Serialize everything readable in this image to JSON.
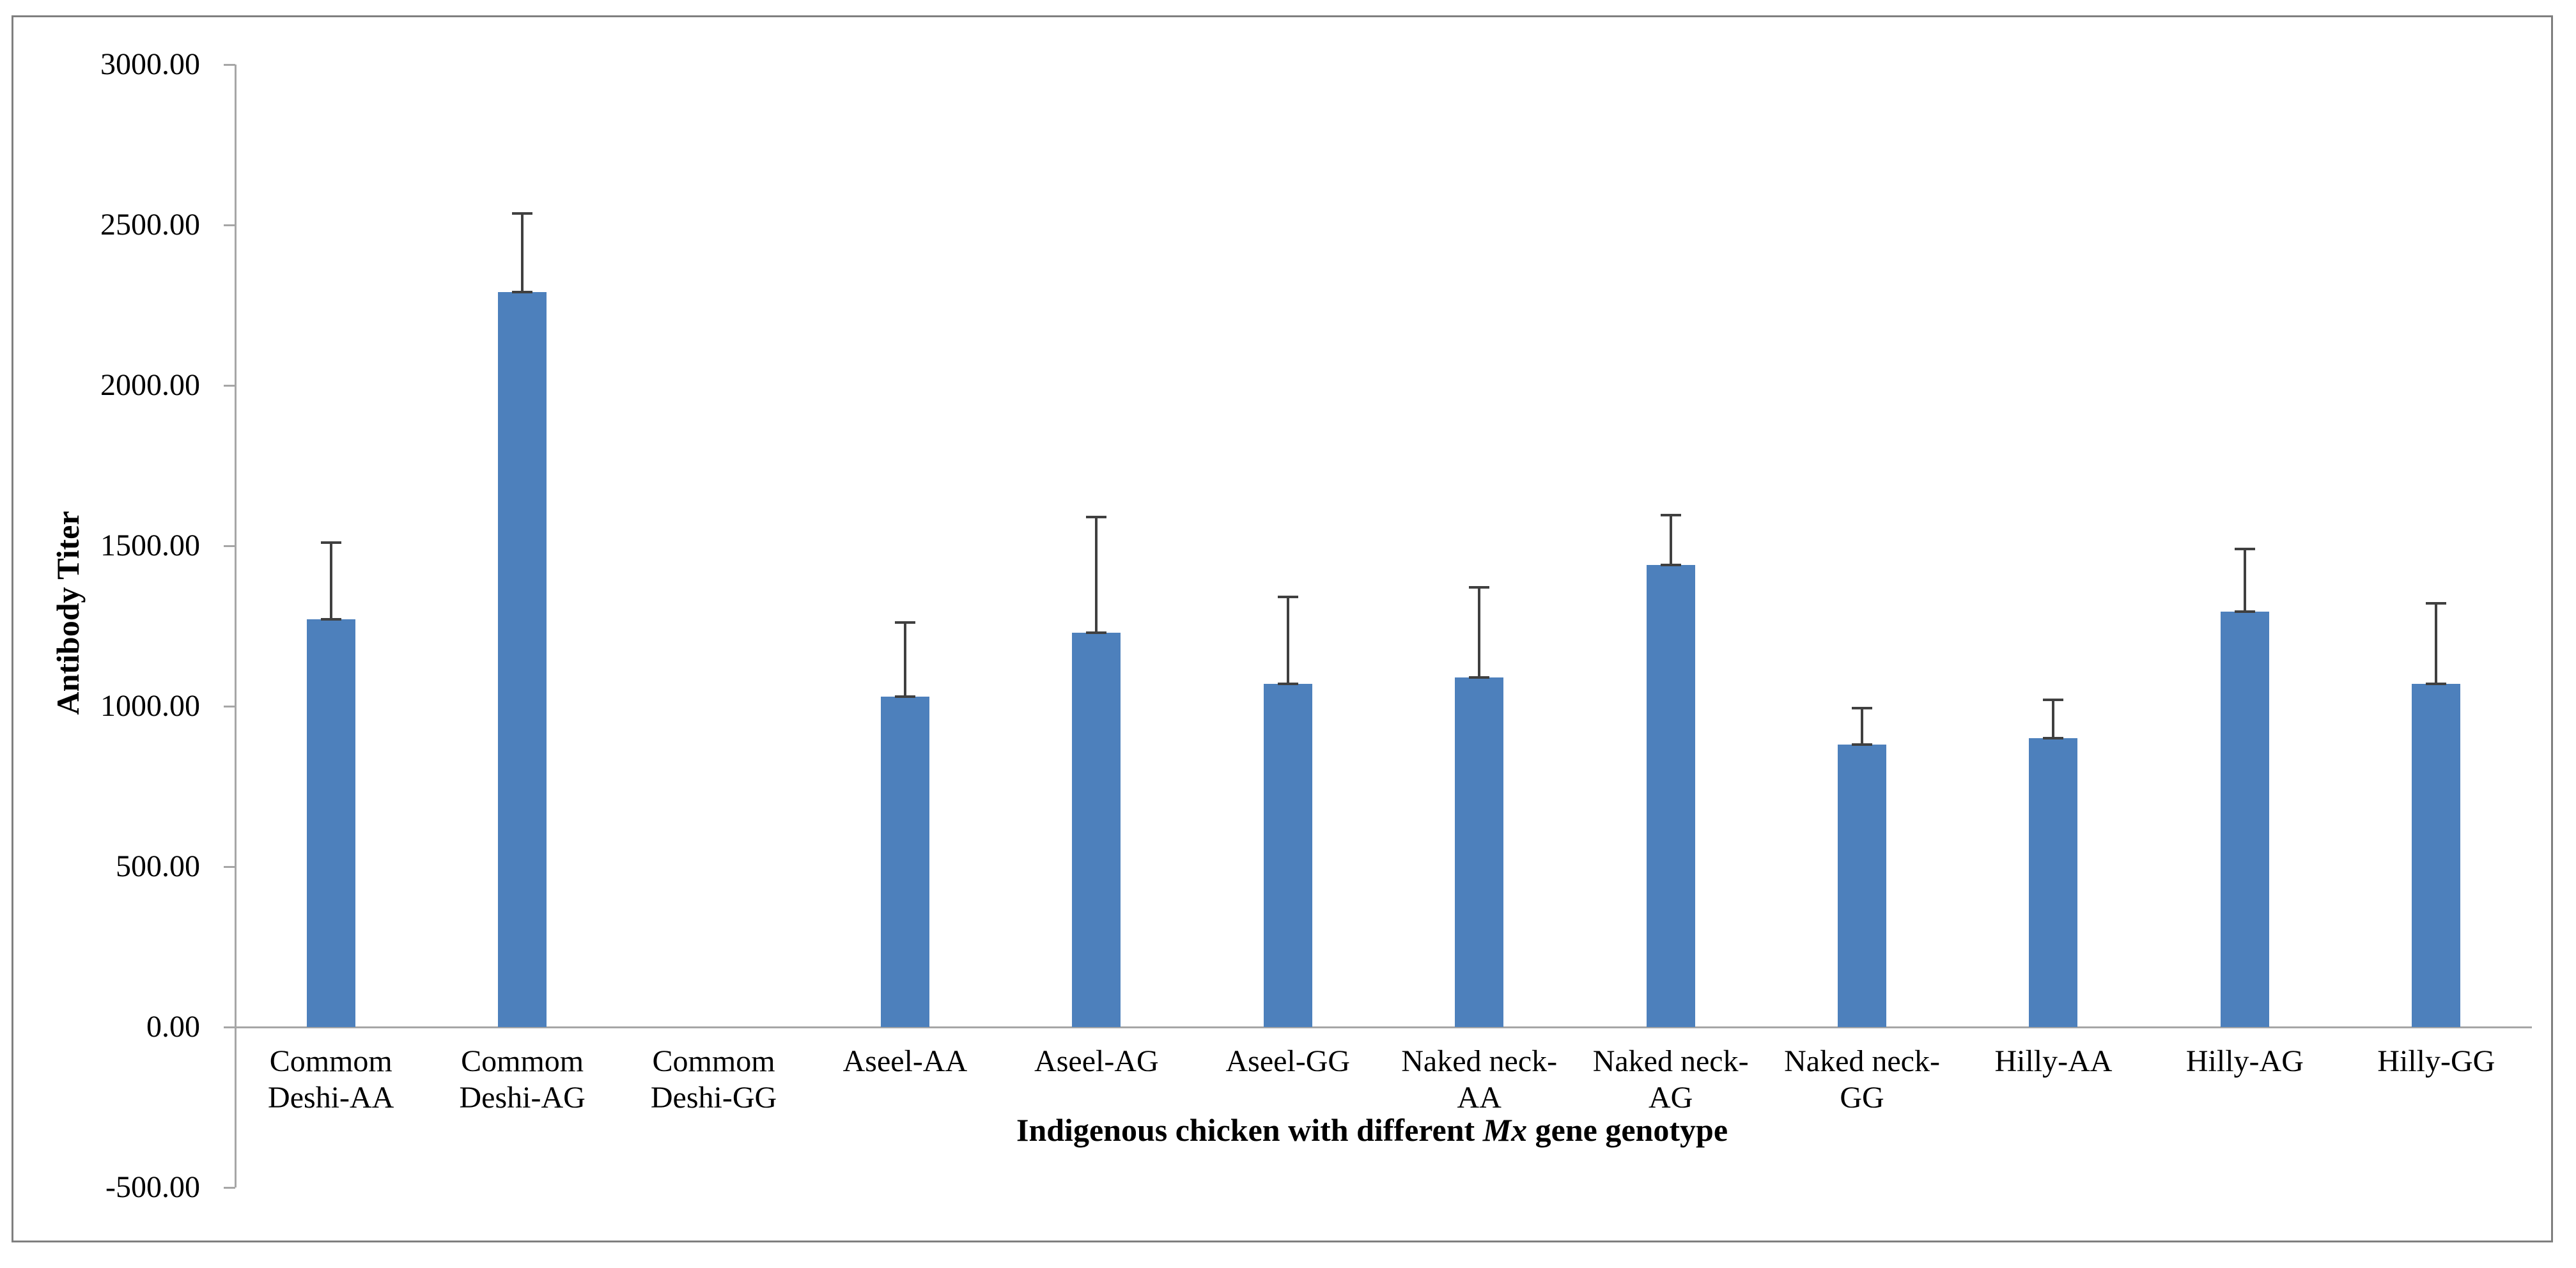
{
  "chart_data": {
    "type": "bar",
    "title": "",
    "xlabel": "Indigenous chicken with different Mx gene genotype",
    "xlabel_parts": {
      "prefix": "Indigenous chicken with different ",
      "italic": "Mx",
      "suffix": " gene genotype"
    },
    "ylabel": "Antibody Titer",
    "categories": [
      "Commom Deshi-AA",
      "Commom Deshi-AG",
      "Commom Deshi-GG",
      "Aseel-AA",
      "Aseel-AG",
      "Aseel-GG",
      "Naked neck-AA",
      "Naked neck-AG",
      "Naked neck-GG",
      "Hilly-AA",
      "Hilly-AG",
      "Hilly-GG"
    ],
    "category_lines": [
      [
        "Commom",
        "Deshi-AA"
      ],
      [
        "Commom",
        "Deshi-AG"
      ],
      [
        "Commom",
        "Deshi-GG"
      ],
      [
        "Aseel-AA"
      ],
      [
        "Aseel-AG"
      ],
      [
        "Aseel-GG"
      ],
      [
        "Naked neck-",
        "AA"
      ],
      [
        "Naked neck-",
        "AG"
      ],
      [
        "Naked neck-",
        "GG"
      ],
      [
        "Hilly-AA"
      ],
      [
        "Hilly-AG"
      ],
      [
        "Hilly-GG"
      ]
    ],
    "values": [
      1270,
      2290,
      0,
      1030,
      1230,
      1070,
      1090,
      1440,
      880,
      900,
      1295,
      1070
    ],
    "errors": [
      240,
      245,
      0,
      230,
      360,
      270,
      280,
      155,
      115,
      120,
      195,
      250
    ],
    "ylim": [
      -500,
      3000
    ],
    "ytick_step": 500,
    "ytick_labels": [
      "3000.00",
      "2500.00",
      "2000.00",
      "1500.00",
      "1000.00",
      "500.00",
      "0.00",
      "-500.00"
    ],
    "grid": false,
    "legend": null,
    "bar_color": "#4d80bc",
    "error_color": "#404040",
    "axis_color": "#a6a6a6",
    "frame_border_color": "#7f7f7f",
    "text_color": "#000000"
  }
}
